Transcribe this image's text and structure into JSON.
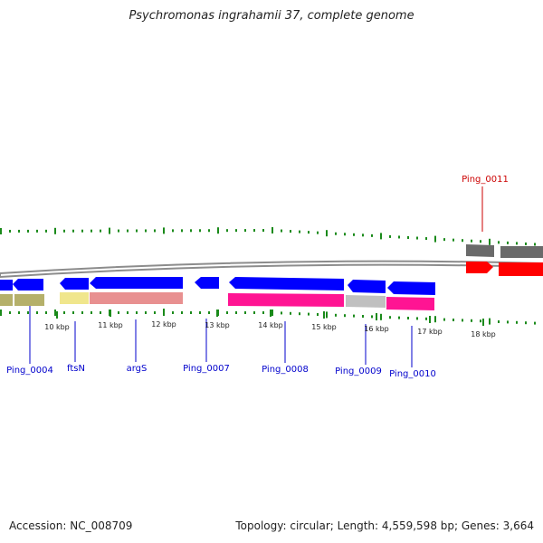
{
  "title": "Psychromonas ingrahamii 37, complete genome",
  "colors": {
    "backbone": "#8c8c8c",
    "blue_gene": "#0000ff",
    "gene_label_blue": "#0000cc",
    "gene_label_red": "#cc0000",
    "tick": "#1a8a1a",
    "olive": "#b5b06a",
    "khaki": "#f0e68c",
    "salmon": "#e89090",
    "pink": "#ff1493",
    "gray_feature": "#c0c0c0",
    "dark_gray": "#6a6a6a",
    "red_gene": "#ff0000"
  },
  "genes": [
    {
      "label": "Ping_0004",
      "color": "blue"
    },
    {
      "label": "ftsN",
      "color": "blue"
    },
    {
      "label": "argS",
      "color": "blue"
    },
    {
      "label": "Ping_0007",
      "color": "blue"
    },
    {
      "label": "Ping_0008",
      "color": "blue"
    },
    {
      "label": "Ping_0009",
      "color": "blue"
    },
    {
      "label": "Ping_0010",
      "color": "blue"
    },
    {
      "label": "Ping_0011",
      "color": "red"
    }
  ],
  "kbp_ticks": [
    "10 kbp",
    "11 kbp",
    "12 kbp",
    "13 kbp",
    "14 kbp",
    "15 kbp",
    "16 kbp",
    "17 kbp",
    "18 kbp"
  ],
  "footer": {
    "accession": "Accession: NC_008709",
    "summary": "Topology: circular; Length: 4,559,598 bp; Genes: 3,664"
  }
}
